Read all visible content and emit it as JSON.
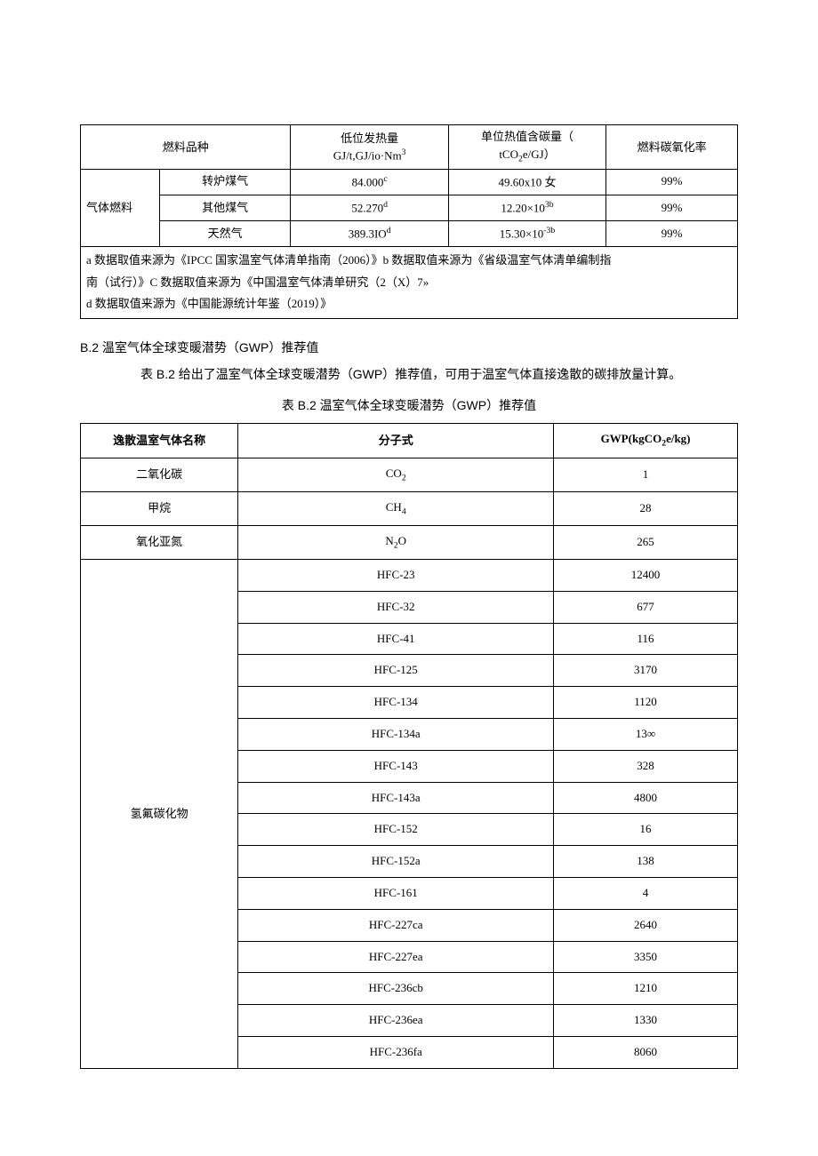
{
  "table1": {
    "headers": {
      "col1": "燃料品种",
      "col2_line1": "低位发热量",
      "col2_line2": "GJ/t,GJ/io·Nm",
      "col2_sup": "3",
      "col3_line1": "单位热值含碳量（",
      "col3_line2_a": "tCO",
      "col3_line2_sub": "2",
      "col3_line2_b": "e/GJ）",
      "col4": "燃料碳氧化率"
    },
    "group_label": "气体燃料",
    "rows": [
      {
        "name": "转炉煤气",
        "lhv": "84.000",
        "lhv_sup": "c",
        "carbon": "49.60x10 女",
        "carbon_sup": "",
        "oxid": "99%"
      },
      {
        "name": "其他煤气",
        "lhv": "52.270",
        "lhv_sup": "d",
        "carbon": "12.20×10",
        "carbon_sup": "3b",
        "oxid": "99%"
      },
      {
        "name": "天然气",
        "lhv": "389.3IO",
        "lhv_sup": "d",
        "carbon": "15.30×10",
        "carbon_sup": "-3b",
        "oxid": "99%"
      }
    ],
    "notes": [
      "a 数据取值来源为《IPCC 国家温室气体清单指南（2006）》b 数据取值来源为《省级温室气体清单编制指",
      "南（试行）》C 数据取值来源为《中国温室气体清单研究（2（X）7»",
      "d 数据取值来源为《中国能源统计年鉴（2019）》"
    ]
  },
  "section": {
    "heading_prefix": "B.2",
    "heading_text": "温室气体全球变暖潜势（GWP）推荐值",
    "text": "表 B.2 给出了温室气体全球变暖潜势（GWP）推荐值，可用于温室气体直接逸散的碳排放量计算。",
    "caption": "表 B.2 温室气体全球变暖潜势（GWP）推荐值"
  },
  "table2": {
    "headers": {
      "col1": "逸散温室气体名称",
      "col2": "分子式",
      "col3_a": "GWP(kgCO",
      "col3_sub": "2",
      "col3_b": "e/kg)"
    },
    "simple_rows": [
      {
        "name": "二氧化碳",
        "formula_a": "CO",
        "formula_sub": "2",
        "formula_b": "",
        "gwp": "1"
      },
      {
        "name": "甲烷",
        "formula_a": "CH",
        "formula_sub": "4",
        "formula_b": "",
        "gwp": "28"
      },
      {
        "name": "氧化亚氮",
        "formula_a": "N",
        "formula_sub": "2",
        "formula_b": "O",
        "gwp": "265"
      }
    ],
    "group_label": "氢氟碳化物",
    "group_rows": [
      {
        "formula": "HFC-23",
        "gwp": "12400"
      },
      {
        "formula": "HFC-32",
        "gwp": "677"
      },
      {
        "formula": "HFC-41",
        "gwp": "116"
      },
      {
        "formula": "HFC-125",
        "gwp": "3170"
      },
      {
        "formula": "HFC-134",
        "gwp": "1120"
      },
      {
        "formula": "HFC-134a",
        "gwp": "13∞"
      },
      {
        "formula": "HFC-143",
        "gwp": "328"
      },
      {
        "formula": "HFC-143a",
        "gwp": "4800"
      },
      {
        "formula": "HFC-152",
        "gwp": "16"
      },
      {
        "formula": "HFC-152a",
        "gwp": "138"
      },
      {
        "formula": "HFC-161",
        "gwp": "4"
      },
      {
        "formula": "HFC-227ca",
        "gwp": "2640"
      },
      {
        "formula": "HFC-227ea",
        "gwp": "3350"
      },
      {
        "formula": "HFC-236cb",
        "gwp": "1210"
      },
      {
        "formula": "HFC-236ea",
        "gwp": "1330"
      },
      {
        "formula": "HFC-236fa",
        "gwp": "8060"
      }
    ]
  },
  "style": {
    "text_color": "#000000",
    "bg_color": "#ffffff",
    "border_color": "#000000",
    "font_size_body": 13,
    "font_size_heading": 14
  }
}
